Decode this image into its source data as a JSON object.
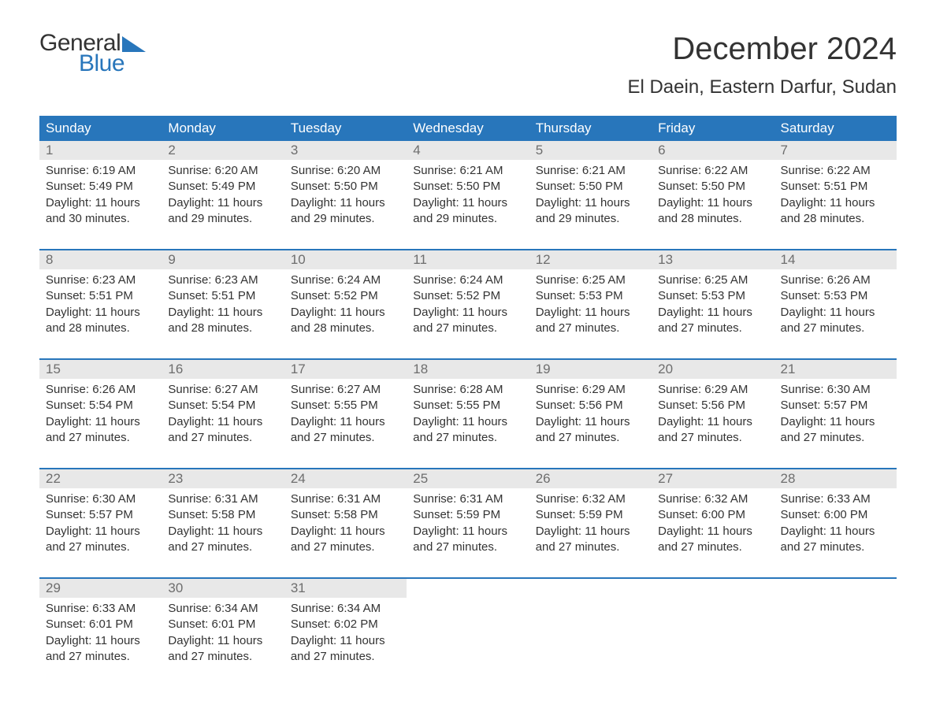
{
  "brand": {
    "word1": "General",
    "word2": "Blue",
    "accent_color": "#2876bb"
  },
  "title": "December 2024",
  "location": "El Daein, Eastern Darfur, Sudan",
  "layout": {
    "type": "calendar",
    "columns": 7,
    "rows": 5,
    "background_color": "#ffffff",
    "header_bg": "#2876bb",
    "header_text_color": "#ffffff",
    "daynum_bg": "#e8e8e8",
    "daynum_color": "#6e6e6e",
    "week_separator_color": "#2876bb",
    "body_text_color": "#333333",
    "title_fontsize": 40,
    "location_fontsize": 24,
    "header_fontsize": 17,
    "daynum_fontsize": 17,
    "body_fontsize": 15
  },
  "day_headers": [
    "Sunday",
    "Monday",
    "Tuesday",
    "Wednesday",
    "Thursday",
    "Friday",
    "Saturday"
  ],
  "weeks": [
    [
      {
        "n": "1",
        "sunrise": "Sunrise: 6:19 AM",
        "sunset": "Sunset: 5:49 PM",
        "dl1": "Daylight: 11 hours",
        "dl2": "and 30 minutes."
      },
      {
        "n": "2",
        "sunrise": "Sunrise: 6:20 AM",
        "sunset": "Sunset: 5:49 PM",
        "dl1": "Daylight: 11 hours",
        "dl2": "and 29 minutes."
      },
      {
        "n": "3",
        "sunrise": "Sunrise: 6:20 AM",
        "sunset": "Sunset: 5:50 PM",
        "dl1": "Daylight: 11 hours",
        "dl2": "and 29 minutes."
      },
      {
        "n": "4",
        "sunrise": "Sunrise: 6:21 AM",
        "sunset": "Sunset: 5:50 PM",
        "dl1": "Daylight: 11 hours",
        "dl2": "and 29 minutes."
      },
      {
        "n": "5",
        "sunrise": "Sunrise: 6:21 AM",
        "sunset": "Sunset: 5:50 PM",
        "dl1": "Daylight: 11 hours",
        "dl2": "and 29 minutes."
      },
      {
        "n": "6",
        "sunrise": "Sunrise: 6:22 AM",
        "sunset": "Sunset: 5:50 PM",
        "dl1": "Daylight: 11 hours",
        "dl2": "and 28 minutes."
      },
      {
        "n": "7",
        "sunrise": "Sunrise: 6:22 AM",
        "sunset": "Sunset: 5:51 PM",
        "dl1": "Daylight: 11 hours",
        "dl2": "and 28 minutes."
      }
    ],
    [
      {
        "n": "8",
        "sunrise": "Sunrise: 6:23 AM",
        "sunset": "Sunset: 5:51 PM",
        "dl1": "Daylight: 11 hours",
        "dl2": "and 28 minutes."
      },
      {
        "n": "9",
        "sunrise": "Sunrise: 6:23 AM",
        "sunset": "Sunset: 5:51 PM",
        "dl1": "Daylight: 11 hours",
        "dl2": "and 28 minutes."
      },
      {
        "n": "10",
        "sunrise": "Sunrise: 6:24 AM",
        "sunset": "Sunset: 5:52 PM",
        "dl1": "Daylight: 11 hours",
        "dl2": "and 28 minutes."
      },
      {
        "n": "11",
        "sunrise": "Sunrise: 6:24 AM",
        "sunset": "Sunset: 5:52 PM",
        "dl1": "Daylight: 11 hours",
        "dl2": "and 27 minutes."
      },
      {
        "n": "12",
        "sunrise": "Sunrise: 6:25 AM",
        "sunset": "Sunset: 5:53 PM",
        "dl1": "Daylight: 11 hours",
        "dl2": "and 27 minutes."
      },
      {
        "n": "13",
        "sunrise": "Sunrise: 6:25 AM",
        "sunset": "Sunset: 5:53 PM",
        "dl1": "Daylight: 11 hours",
        "dl2": "and 27 minutes."
      },
      {
        "n": "14",
        "sunrise": "Sunrise: 6:26 AM",
        "sunset": "Sunset: 5:53 PM",
        "dl1": "Daylight: 11 hours",
        "dl2": "and 27 minutes."
      }
    ],
    [
      {
        "n": "15",
        "sunrise": "Sunrise: 6:26 AM",
        "sunset": "Sunset: 5:54 PM",
        "dl1": "Daylight: 11 hours",
        "dl2": "and 27 minutes."
      },
      {
        "n": "16",
        "sunrise": "Sunrise: 6:27 AM",
        "sunset": "Sunset: 5:54 PM",
        "dl1": "Daylight: 11 hours",
        "dl2": "and 27 minutes."
      },
      {
        "n": "17",
        "sunrise": "Sunrise: 6:27 AM",
        "sunset": "Sunset: 5:55 PM",
        "dl1": "Daylight: 11 hours",
        "dl2": "and 27 minutes."
      },
      {
        "n": "18",
        "sunrise": "Sunrise: 6:28 AM",
        "sunset": "Sunset: 5:55 PM",
        "dl1": "Daylight: 11 hours",
        "dl2": "and 27 minutes."
      },
      {
        "n": "19",
        "sunrise": "Sunrise: 6:29 AM",
        "sunset": "Sunset: 5:56 PM",
        "dl1": "Daylight: 11 hours",
        "dl2": "and 27 minutes."
      },
      {
        "n": "20",
        "sunrise": "Sunrise: 6:29 AM",
        "sunset": "Sunset: 5:56 PM",
        "dl1": "Daylight: 11 hours",
        "dl2": "and 27 minutes."
      },
      {
        "n": "21",
        "sunrise": "Sunrise: 6:30 AM",
        "sunset": "Sunset: 5:57 PM",
        "dl1": "Daylight: 11 hours",
        "dl2": "and 27 minutes."
      }
    ],
    [
      {
        "n": "22",
        "sunrise": "Sunrise: 6:30 AM",
        "sunset": "Sunset: 5:57 PM",
        "dl1": "Daylight: 11 hours",
        "dl2": "and 27 minutes."
      },
      {
        "n": "23",
        "sunrise": "Sunrise: 6:31 AM",
        "sunset": "Sunset: 5:58 PM",
        "dl1": "Daylight: 11 hours",
        "dl2": "and 27 minutes."
      },
      {
        "n": "24",
        "sunrise": "Sunrise: 6:31 AM",
        "sunset": "Sunset: 5:58 PM",
        "dl1": "Daylight: 11 hours",
        "dl2": "and 27 minutes."
      },
      {
        "n": "25",
        "sunrise": "Sunrise: 6:31 AM",
        "sunset": "Sunset: 5:59 PM",
        "dl1": "Daylight: 11 hours",
        "dl2": "and 27 minutes."
      },
      {
        "n": "26",
        "sunrise": "Sunrise: 6:32 AM",
        "sunset": "Sunset: 5:59 PM",
        "dl1": "Daylight: 11 hours",
        "dl2": "and 27 minutes."
      },
      {
        "n": "27",
        "sunrise": "Sunrise: 6:32 AM",
        "sunset": "Sunset: 6:00 PM",
        "dl1": "Daylight: 11 hours",
        "dl2": "and 27 minutes."
      },
      {
        "n": "28",
        "sunrise": "Sunrise: 6:33 AM",
        "sunset": "Sunset: 6:00 PM",
        "dl1": "Daylight: 11 hours",
        "dl2": "and 27 minutes."
      }
    ],
    [
      {
        "n": "29",
        "sunrise": "Sunrise: 6:33 AM",
        "sunset": "Sunset: 6:01 PM",
        "dl1": "Daylight: 11 hours",
        "dl2": "and 27 minutes."
      },
      {
        "n": "30",
        "sunrise": "Sunrise: 6:34 AM",
        "sunset": "Sunset: 6:01 PM",
        "dl1": "Daylight: 11 hours",
        "dl2": "and 27 minutes."
      },
      {
        "n": "31",
        "sunrise": "Sunrise: 6:34 AM",
        "sunset": "Sunset: 6:02 PM",
        "dl1": "Daylight: 11 hours",
        "dl2": "and 27 minutes."
      },
      null,
      null,
      null,
      null
    ]
  ]
}
